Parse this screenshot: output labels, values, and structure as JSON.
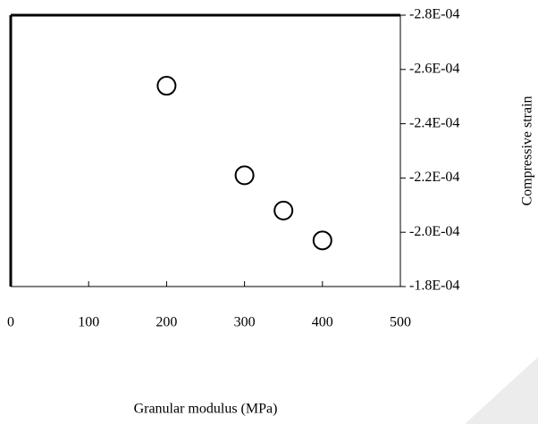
{
  "chart_data": {
    "type": "scatter",
    "x_label": "Granular modulus (MPa)",
    "y_label": "Compressive strain",
    "x": [
      200,
      300,
      350,
      400
    ],
    "values": [
      -0.000254,
      -0.000221,
      -0.000208,
      -0.000197
    ],
    "color": "#000000",
    "xlim": [
      0,
      500
    ],
    "xticks": [
      0,
      100,
      200,
      300,
      400,
      500
    ],
    "ylim": [
      -0.00018,
      -0.00028
    ],
    "yticks": [
      {
        "value": -0.00018,
        "label": "-1.8E-04"
      },
      {
        "value": -0.0002,
        "label": "-2.0E-04"
      },
      {
        "value": -0.00022,
        "label": "-2.2E-04"
      },
      {
        "value": -0.00024,
        "label": "-2.4E-04"
      },
      {
        "value": -0.00026,
        "label": "-2.6E-04"
      },
      {
        "value": -0.00028,
        "label": "-2.8E-04"
      }
    ]
  }
}
